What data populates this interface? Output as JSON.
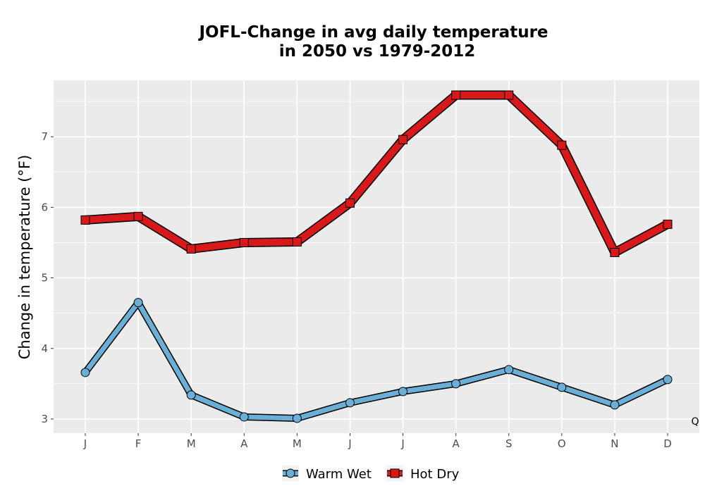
{
  "chart_data": {
    "type": "line",
    "title": "JOFL-Change in avg daily temperature",
    "subtitle": "in 2050 vs 1979-2012",
    "ylabel": "Change in temperature (°F)",
    "xlabel": "",
    "categories": [
      "J",
      "F",
      "M",
      "A",
      "M",
      "J",
      "J",
      "A",
      "S",
      "O",
      "N",
      "D"
    ],
    "ylim": [
      2.8,
      7.8
    ],
    "yticks": [
      3,
      4,
      5,
      6,
      7
    ],
    "grid": true,
    "legend_position": "bottom",
    "series": [
      {
        "name": "Warm Wet",
        "marker": "circle",
        "color": "#6baed6",
        "values": [
          3.66,
          4.65,
          3.34,
          3.03,
          3.01,
          3.23,
          3.39,
          3.5,
          3.7,
          3.45,
          3.2,
          3.56
        ]
      },
      {
        "name": "Hot Dry",
        "marker": "square",
        "color": "#d7191c",
        "values": [
          5.82,
          5.87,
          5.41,
          5.5,
          5.51,
          6.06,
          6.96,
          7.59,
          7.59,
          6.88,
          5.36,
          5.76
        ]
      }
    ],
    "corner_label": "Q"
  }
}
